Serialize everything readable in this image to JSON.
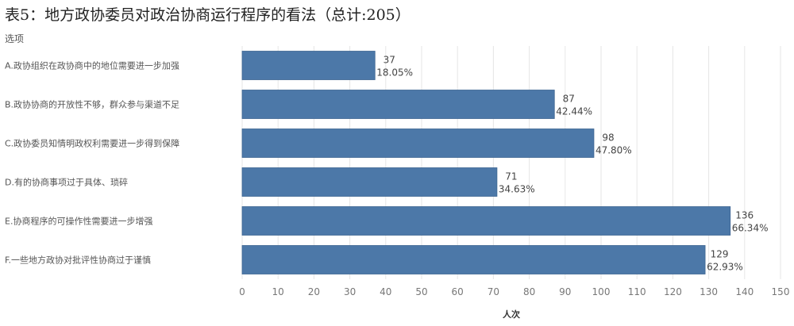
{
  "title": "表5：地方政协委员对政治协商运行程序的看法（总计:205）",
  "column_header": "选项",
  "colors": {
    "bar": "#4c78a8",
    "grid": "#e6e6e6",
    "label": "#555555",
    "tick": "#777777"
  },
  "chart_data": {
    "type": "bar",
    "orientation": "horizontal",
    "title": "表5：地方政协委员对政治协商运行程序的看法（总计:205）",
    "xlabel": "人次",
    "ylabel": "选项",
    "xlim": [
      0,
      150
    ],
    "xticks": [
      0,
      10,
      20,
      30,
      40,
      50,
      60,
      70,
      80,
      90,
      100,
      110,
      120,
      130,
      140,
      150
    ],
    "grid": true,
    "categories": [
      "A.政协组织在政协商中的地位需要进一步加强",
      "B.政协协商的开放性不够，群众参与渠道不足",
      "C.政协委员知情明政权利需要进一步得到保障",
      "D.有的协商事项过于具体、琐碎",
      "E.协商程序的可操作性需要进一步增强",
      "F.一些地方政协对批评性协商过于谨慎"
    ],
    "values": [
      37,
      87,
      98,
      71,
      136,
      129
    ],
    "percent_labels": [
      "18.05%",
      "42.44%",
      "47.80%",
      "34.63%",
      "66.34%",
      "62.93%"
    ]
  }
}
